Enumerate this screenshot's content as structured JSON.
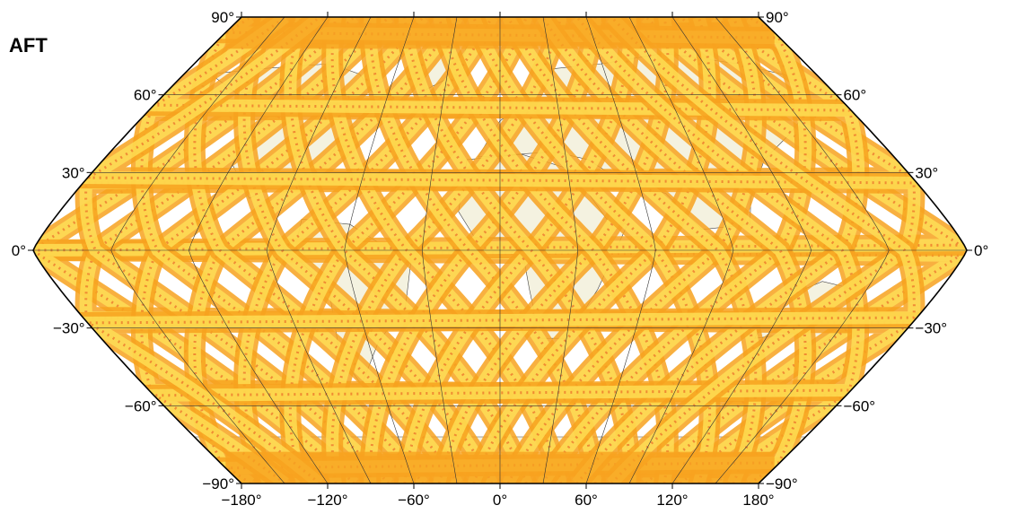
{
  "panel_label": "AFT",
  "map": {
    "projection": "Winkel-like pseudo-cylindrical (flat poles, pointed equator ends)",
    "colors": {
      "background_land": "#f4f2e0",
      "ocean_no_data": "#ffffff",
      "swath_low": "#ffe45a",
      "swath_mid": "#f7a21f",
      "swath_high": "#e3401a",
      "swath_light": "#d8f5a8",
      "gridline": "#333333",
      "coastline": "#444444"
    },
    "latitude_labels": {
      "left": [
        "90°",
        "60°",
        "30°",
        "0°",
        "−30°",
        "−60°",
        "−90°"
      ],
      "right": [
        "90°",
        "60°",
        "30°",
        "0°",
        "−30°",
        "−60°",
        "−90°"
      ]
    },
    "longitude_labels": [
      "−180°",
      "−120°",
      "−60°",
      "0°",
      "60°",
      "120°",
      "180°"
    ]
  }
}
